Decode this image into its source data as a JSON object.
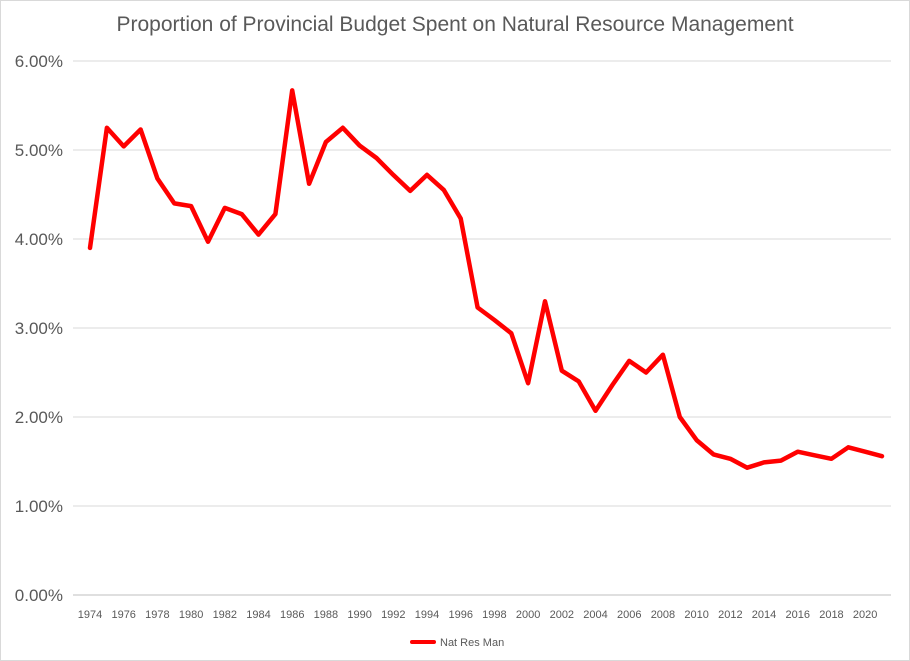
{
  "chart_data": {
    "type": "line",
    "title": "Proportion of Provincial Budget Spent on Natural Resource Management",
    "xlabel": "",
    "ylabel": "",
    "x": [
      1974,
      1975,
      1976,
      1977,
      1978,
      1979,
      1980,
      1981,
      1982,
      1983,
      1984,
      1985,
      1986,
      1987,
      1988,
      1989,
      1990,
      1991,
      1992,
      1993,
      1994,
      1995,
      1996,
      1997,
      1998,
      1999,
      2000,
      2001,
      2002,
      2003,
      2004,
      2005,
      2006,
      2007,
      2008,
      2009,
      2010,
      2011,
      2012,
      2013,
      2014,
      2015,
      2016,
      2017,
      2018,
      2019,
      2020,
      2021
    ],
    "x_tick_labels": [
      "1974",
      "1976",
      "1978",
      "1980",
      "1982",
      "1984",
      "1986",
      "1988",
      "1990",
      "1992",
      "1994",
      "1996",
      "1998",
      "2000",
      "2002",
      "2004",
      "2006",
      "2008",
      "2010",
      "2012",
      "2014",
      "2016",
      "2018",
      "2020"
    ],
    "y_tick_labels": [
      "0.00%",
      "1.00%",
      "2.00%",
      "3.00%",
      "4.00%",
      "5.00%",
      "6.00%"
    ],
    "ylim": [
      0,
      6
    ],
    "grid": true,
    "legend_position": "bottom",
    "series": [
      {
        "name": "Nat Res Man",
        "color": "#ff0000",
        "values": [
          3.9,
          5.25,
          5.04,
          5.23,
          4.68,
          4.4,
          4.37,
          3.97,
          4.35,
          4.28,
          4.05,
          4.28,
          5.67,
          4.62,
          5.09,
          5.25,
          5.05,
          4.91,
          4.72,
          4.54,
          4.72,
          4.55,
          4.23,
          3.23,
          3.09,
          2.94,
          2.38,
          3.3,
          2.52,
          2.4,
          2.07,
          2.36,
          2.63,
          2.5,
          2.7,
          2.0,
          1.74,
          1.58,
          1.53,
          1.43,
          1.49,
          1.51,
          1.61,
          1.57,
          1.53,
          1.66,
          1.61,
          1.56
        ]
      }
    ]
  }
}
